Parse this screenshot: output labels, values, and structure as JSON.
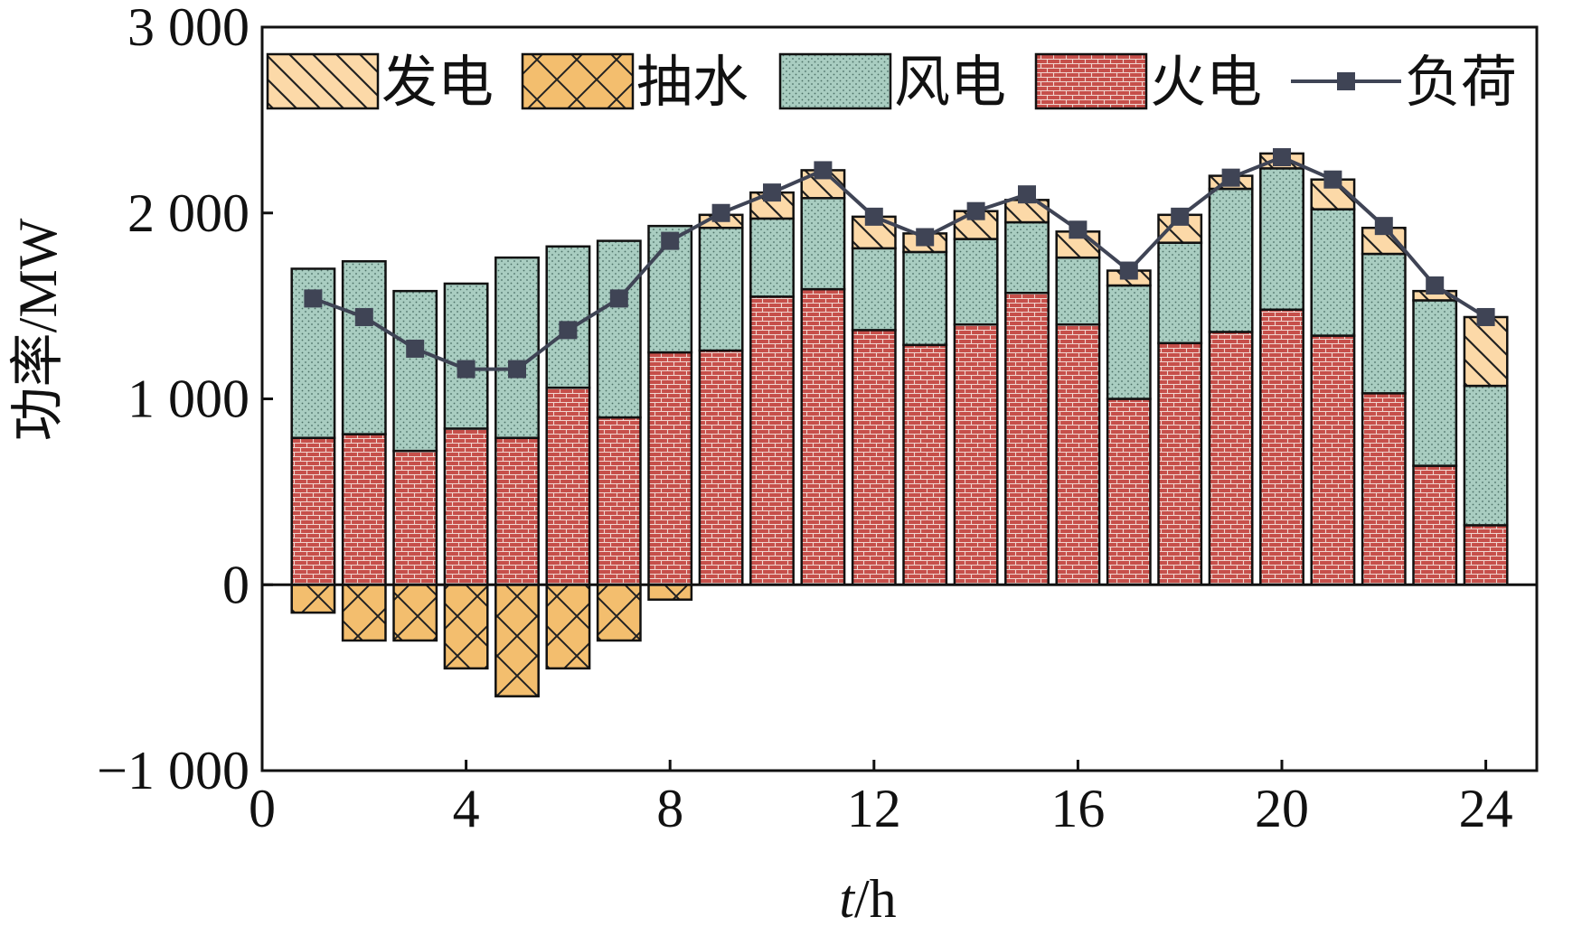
{
  "chart_data": {
    "type": "bar",
    "stacked": true,
    "title": "",
    "xlabel_italic": "t",
    "xlabel_unit": "/h",
    "ylabel": "功率/MW",
    "xlim": [
      0,
      25
    ],
    "ylim": [
      -1000,
      3000
    ],
    "xticks": [
      0,
      4,
      8,
      12,
      16,
      20,
      24
    ],
    "yticks": [
      -1000,
      0,
      1000,
      2000,
      3000
    ],
    "ytick_labels": [
      "−1 000",
      "0",
      "1 000",
      "2 000",
      "3 000"
    ],
    "x": [
      1,
      2,
      3,
      4,
      5,
      6,
      7,
      8,
      9,
      10,
      11,
      12,
      13,
      14,
      15,
      16,
      17,
      18,
      19,
      20,
      21,
      22,
      23,
      24
    ],
    "legend_position": "top",
    "series": [
      {
        "name": "发电",
        "kind": "bar",
        "color": "#fcd9a8",
        "pattern": "diagonal",
        "values": [
          0,
          0,
          0,
          0,
          0,
          0,
          0,
          0,
          70,
          140,
          150,
          170,
          100,
          150,
          120,
          140,
          80,
          150,
          70,
          80,
          160,
          140,
          50,
          370
        ]
      },
      {
        "name": "抽水",
        "kind": "bar",
        "color": "#f3be6e",
        "pattern": "crosshatch",
        "values": [
          -150,
          -300,
          -300,
          -450,
          -600,
          -450,
          -300,
          -80,
          0,
          0,
          0,
          0,
          0,
          0,
          0,
          0,
          0,
          0,
          0,
          0,
          0,
          0,
          0,
          0
        ]
      },
      {
        "name": "风电",
        "kind": "bar",
        "color": "#a9cdc1",
        "pattern": "dots",
        "values": [
          910,
          930,
          860,
          780,
          970,
          760,
          950,
          680,
          660,
          420,
          490,
          440,
          500,
          460,
          380,
          360,
          610,
          540,
          770,
          760,
          680,
          750,
          890,
          750
        ]
      },
      {
        "name": "火电",
        "kind": "bar",
        "color": "#c64f4a",
        "pattern": "brick",
        "values": [
          790,
          810,
          720,
          840,
          790,
          1060,
          900,
          1250,
          1260,
          1550,
          1590,
          1370,
          1290,
          1400,
          1570,
          1400,
          1000,
          1300,
          1360,
          1480,
          1340,
          1030,
          640,
          320
        ]
      },
      {
        "name": "负荷",
        "kind": "line",
        "color": "#3f4455",
        "marker": "square",
        "values": [
          1540,
          1440,
          1270,
          1160,
          1160,
          1370,
          1540,
          1850,
          2000,
          2110,
          2230,
          1980,
          1870,
          2010,
          2100,
          1910,
          1690,
          1980,
          2190,
          2300,
          2180,
          1930,
          1610,
          1440
        ]
      }
    ]
  }
}
